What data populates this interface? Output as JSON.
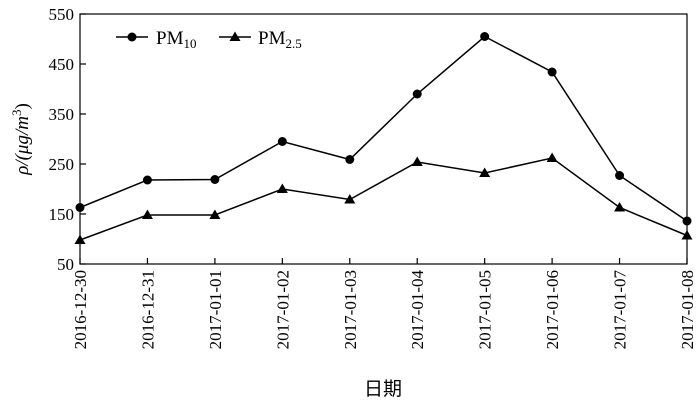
{
  "chart_data": {
    "type": "line",
    "x": [
      "2016-12-30",
      "2016-12-31",
      "2017-01-01",
      "2017-01-02",
      "2017-01-03",
      "2017-01-04",
      "2017-01-05",
      "2017-01-06",
      "2017-01-07",
      "2017-01-08"
    ],
    "series": [
      {
        "name": "PM10",
        "name_main": "PM",
        "name_sub": "10",
        "marker": "circle",
        "values": [
          163,
          218,
          219,
          295,
          259,
          390,
          505,
          434,
          227,
          136
        ]
      },
      {
        "name": "PM2.5",
        "name_main": "PM",
        "name_sub": "2.5",
        "marker": "triangle",
        "values": [
          98,
          148,
          148,
          200,
          179,
          254,
          232,
          262,
          163,
          107
        ]
      }
    ],
    "xlabel": "日期",
    "ylabel_main": "ρ/(μg/m",
    "ylabel_sup": "3",
    "ylabel_end": ")",
    "ylim": [
      50,
      550
    ],
    "yticks": [
      50,
      150,
      250,
      350,
      450,
      550
    ],
    "legend": "top-left",
    "grid": false,
    "line_color": "#000000"
  }
}
